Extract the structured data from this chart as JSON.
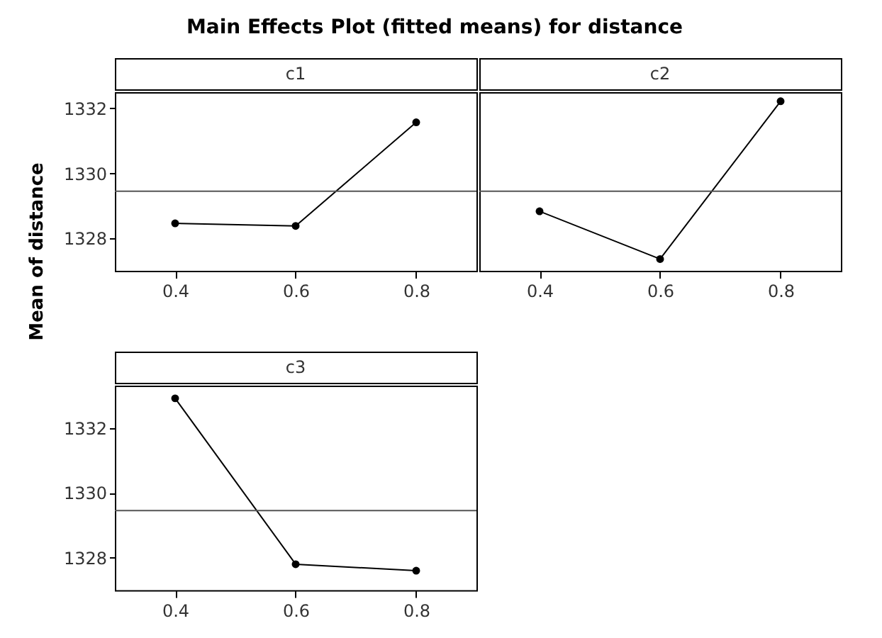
{
  "chart_data": [
    {
      "type": "line",
      "title": "Main Effects Plot (fitted means) for distance",
      "subtitle": "c1",
      "ylabel": "Mean of distance",
      "x": [
        0.4,
        0.6,
        0.8
      ],
      "values": [
        1328.46,
        1328.38,
        1331.57
      ],
      "color": "#000000",
      "marker": "circle",
      "xlim": [
        0.3,
        0.9
      ],
      "xticks": [
        0.4,
        0.6,
        0.8
      ],
      "ylim": [
        1327.0,
        1332.5
      ],
      "yticks": [
        1328,
        1330,
        1332
      ],
      "ref_lines": [
        {
          "axis": "y",
          "value": 1329.45
        }
      ],
      "grid": false
    },
    {
      "type": "line",
      "title": "c2",
      "x": [
        0.4,
        0.6,
        0.8
      ],
      "values": [
        1328.83,
        1327.36,
        1332.22
      ],
      "color": "#000000",
      "marker": "circle",
      "xlim": [
        0.3,
        0.9
      ],
      "xticks": [
        0.4,
        0.6,
        0.8
      ],
      "ylim": [
        1327.0,
        1332.5
      ],
      "yticks": [
        1328,
        1330,
        1332
      ],
      "tick_labels": "x",
      "ref_lines": [
        {
          "axis": "y",
          "value": 1329.45
        }
      ],
      "grid": false
    },
    {
      "type": "line",
      "title": "c3",
      "x": [
        0.4,
        0.6,
        0.8
      ],
      "values": [
        1332.91,
        1327.8,
        1327.6
      ],
      "color": "#000000",
      "marker": "circle",
      "xlim": [
        0.3,
        0.9
      ],
      "xticks": [
        0.4,
        0.6,
        0.8
      ],
      "ylim": [
        1327.0,
        1333.3
      ],
      "yticks": [
        1328,
        1330,
        1332
      ],
      "ref_lines": [
        {
          "axis": "y",
          "value": 1329.45
        }
      ],
      "grid": false
    }
  ]
}
